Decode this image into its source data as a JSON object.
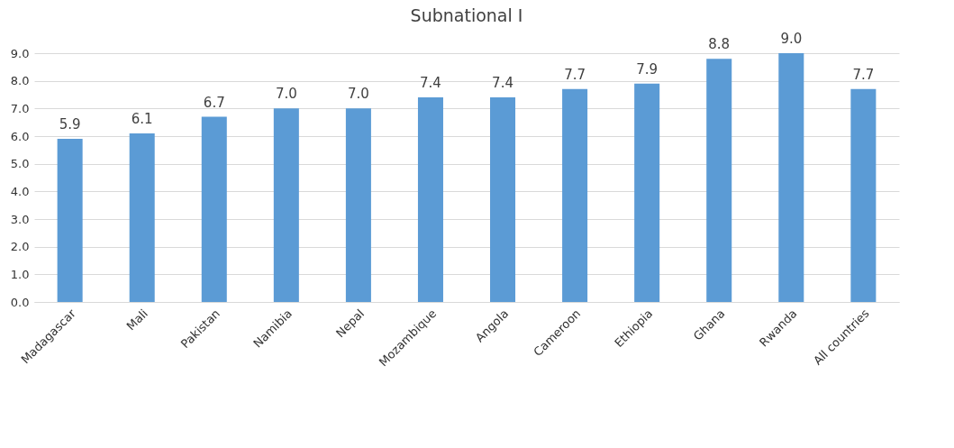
{
  "chart_data": {
    "type": "bar",
    "title": "Subnational I",
    "categories": [
      "Madagascar",
      "Mali",
      "Pakistan",
      "Namibia",
      "Nepal",
      "Mozambique",
      "Angola",
      "Cameroon",
      "Ethiopia",
      "Ghana",
      "Rwanda",
      "All countries"
    ],
    "values": [
      5.9,
      6.1,
      6.7,
      7.0,
      7.0,
      7.4,
      7.4,
      7.7,
      7.9,
      8.8,
      9.0,
      7.7
    ],
    "value_labels": [
      "5.9",
      "6.1",
      "6.7",
      "7.0",
      "7.0",
      "7.4",
      "7.4",
      "7.7",
      "7.9",
      "8.8",
      "9.0",
      "7.7"
    ],
    "color": "#5b9bd5",
    "ylim": [
      0,
      9
    ],
    "yticks": [
      {
        "value": 0,
        "label": "0.0"
      },
      {
        "value": 1,
        "label": "1.0"
      },
      {
        "value": 2,
        "label": "2.0"
      },
      {
        "value": 3,
        "label": "3.0"
      },
      {
        "value": 4,
        "label": "4.0"
      },
      {
        "value": 5,
        "label": "5.0"
      },
      {
        "value": 6,
        "label": "6.0"
      },
      {
        "value": 7,
        "label": "7.0"
      },
      {
        "value": 8,
        "label": "8.0"
      },
      {
        "value": 9,
        "label": "9.0"
      }
    ],
    "grid": "y"
  }
}
